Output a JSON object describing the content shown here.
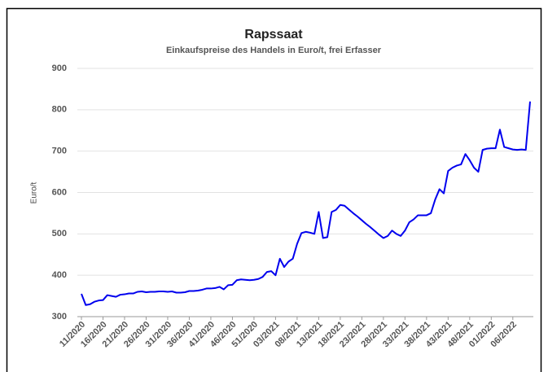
{
  "chart_data": {
    "type": "line",
    "title": "Rapssaat",
    "subtitle": "Einkaufspreise des Handels in Euro/t, frei Erfasser",
    "y_label": "Euro/t",
    "categories": [
      "11/2020",
      null,
      null,
      null,
      null,
      "16/2020",
      null,
      null,
      null,
      null,
      "21/2020",
      null,
      null,
      null,
      null,
      "26/2020",
      null,
      null,
      null,
      null,
      "31/2020",
      null,
      null,
      null,
      null,
      "36/2020",
      null,
      null,
      null,
      null,
      "41/2020",
      null,
      null,
      null,
      null,
      "46/2020",
      null,
      null,
      null,
      null,
      "51/2020",
      null,
      null,
      null,
      null,
      "03/2021",
      null,
      null,
      null,
      null,
      "08/2021",
      null,
      null,
      null,
      null,
      "13/2021",
      null,
      null,
      null,
      null,
      "18/2021",
      null,
      null,
      null,
      null,
      "23/2021",
      null,
      null,
      null,
      null,
      "28/2021",
      null,
      null,
      null,
      null,
      "33/2021",
      null,
      null,
      null,
      null,
      "38/2021",
      null,
      null,
      null,
      null,
      "43/2021",
      null,
      null,
      null,
      null,
      "48/2021",
      null,
      null,
      null,
      null,
      "01/2022",
      null,
      null,
      null,
      null,
      "06/2022",
      null,
      null,
      null,
      null
    ],
    "series": [
      {
        "name": "Rapssaat",
        "color": "#0000ee",
        "values": [
          355,
          328,
          330,
          336,
          339,
          340,
          352,
          350,
          348,
          353,
          354,
          356,
          356,
          360,
          361,
          359,
          360,
          360,
          361,
          361,
          360,
          361,
          358,
          358,
          359,
          362,
          362,
          363,
          365,
          368,
          368,
          369,
          372,
          366,
          376,
          377,
          388,
          390,
          389,
          388,
          389,
          391,
          396,
          408,
          410,
          400,
          440,
          420,
          433,
          440,
          476,
          502,
          505,
          503,
          500,
          553,
          490,
          492,
          553,
          558,
          570,
          568,
          559,
          550,
          542,
          533,
          524,
          516,
          507,
          498,
          490,
          495,
          508,
          500,
          495,
          508,
          528,
          535,
          545,
          545,
          545,
          550,
          583,
          608,
          598,
          652,
          660,
          665,
          668,
          693,
          678,
          660,
          650,
          703,
          706,
          707,
          707,
          752,
          710,
          707,
          704,
          703,
          704,
          703,
          820
        ]
      }
    ],
    "ylim": [
      300,
      900
    ],
    "yticks": [
      300,
      400,
      500,
      600,
      700,
      800,
      900
    ],
    "grid": true
  }
}
